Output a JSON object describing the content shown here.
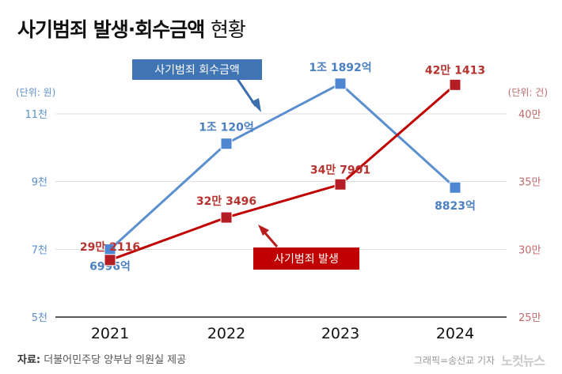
{
  "title": {
    "main": "사기범죄 발생·회수금액",
    "sub": "현황"
  },
  "chart_data": {
    "type": "line",
    "title": "사기범죄 발생·회수금액 현황",
    "categories": [
      "2021",
      "2022",
      "2023",
      "2024"
    ],
    "left_axis": {
      "unit_label": "(단위: 원)",
      "ticks": [
        "5천",
        "7천",
        "9천",
        "11천"
      ],
      "tick_values": [
        5000,
        7000,
        9000,
        11000
      ],
      "range": [
        5000,
        11000
      ]
    },
    "right_axis": {
      "unit_label": "(단위: 건)",
      "ticks": [
        "25만",
        "30만",
        "35만",
        "40만"
      ],
      "tick_values": [
        250000,
        300000,
        350000,
        400000
      ],
      "range": [
        250000,
        400000
      ]
    },
    "series": [
      {
        "name": "사기범죄 회수금액",
        "axis": "left",
        "color": "#5b8fcf",
        "marker_color": "#4f86d1",
        "values": [
          6996,
          10120,
          11892,
          8823
        ],
        "value_labels": [
          "6996억",
          "1조 120억",
          "1조 1892억",
          "8823억"
        ]
      },
      {
        "name": "사기범죄 발생",
        "axis": "right",
        "color": "#c00000",
        "marker_color": "#b51d24",
        "values": [
          292116,
          323496,
          347901,
          421413
        ],
        "value_labels": [
          "29만 2116",
          "32만 3496",
          "34만 7901",
          "42만 1413"
        ]
      }
    ]
  },
  "footer": {
    "source_label": "자료:",
    "source": "더불어민주당 양부남 의원실 제공",
    "credit": "그래픽=송선교 기자",
    "logo": "노컷뉴스"
  }
}
